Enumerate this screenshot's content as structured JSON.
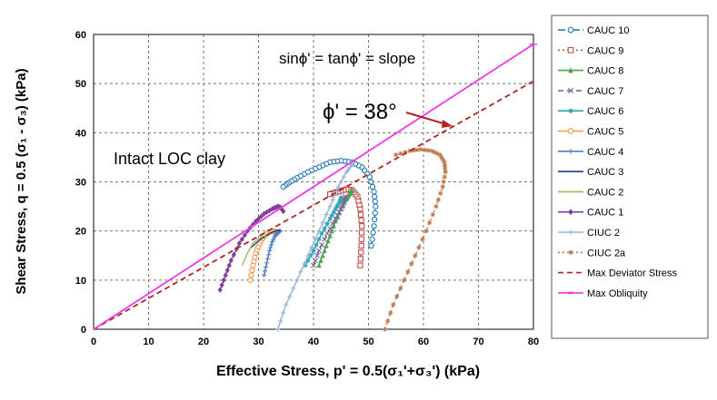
{
  "chart_data": {
    "type": "scatter",
    "title": "",
    "xlabel": "Effective Stress, p' = 0.5(σ₁'+σ₃')   (kPa)",
    "ylabel": "Shear Stress, q = 0.5 (σ₁ - σ₃)   (kPa)",
    "xlim": [
      0,
      80
    ],
    "ylim": [
      0,
      60
    ],
    "x_ticks": [
      "0",
      "10",
      "20",
      "30",
      "40",
      "50",
      "60",
      "70",
      "80"
    ],
    "y_ticks": [
      "0",
      "10",
      "20",
      "30",
      "40",
      "50",
      "60"
    ],
    "grid": true,
    "legend_position": "right",
    "annotations": {
      "friction_relation": "sinϕ' = tanϕ' = slope",
      "friction_angle": "ϕ' = 38°",
      "material": "Intact LOC clay"
    },
    "series": [
      {
        "name": "CAUC 10",
        "color": "#1f77b4",
        "marker": "circle",
        "dash": "dashdot",
        "x": [
          50.5,
          51.0,
          51.3,
          51.0,
          50.2,
          48.8,
          47.0,
          45.0,
          43.0,
          41.0,
          39.0,
          37.0,
          35.5,
          34.5
        ],
        "y": [
          17.0,
          21.0,
          25.0,
          28.0,
          31.0,
          33.0,
          34.0,
          34.3,
          34.0,
          33.0,
          32.0,
          30.8,
          29.8,
          29.0
        ]
      },
      {
        "name": "CAUC 9",
        "color": "#c0504d",
        "marker": "square",
        "dash": "dot",
        "x": [
          48.5,
          48.7,
          48.8,
          48.5,
          48.0,
          47.0,
          46.0,
          44.5,
          43.0
        ],
        "y": [
          13.0,
          17.0,
          21.0,
          24.5,
          27.0,
          28.3,
          28.5,
          28.0,
          27.5
        ]
      },
      {
        "name": "CAUC 8",
        "color": "#4ea24e",
        "marker": "triangle",
        "dash": "solid",
        "x": [
          41.0,
          42.0,
          43.0,
          44.0,
          45.0,
          46.0,
          46.5,
          46.8,
          47.0
        ],
        "y": [
          13.0,
          16.0,
          19.0,
          22.0,
          24.5,
          26.5,
          27.5,
          28.0,
          28.3
        ]
      },
      {
        "name": "CAUC 7",
        "color": "#8064a2",
        "marker": "x",
        "dash": "dash",
        "x": [
          40.0,
          41.0,
          42.5,
          44.0,
          45.0,
          45.5,
          45.8
        ],
        "y": [
          13.0,
          16.0,
          19.5,
          22.5,
          24.5,
          26.0,
          27.0
        ]
      },
      {
        "name": "CAUC 6",
        "color": "#2aa7b0",
        "marker": "asterisk",
        "dash": "solid",
        "x": [
          38.5,
          40.0,
          41.5,
          43.0,
          44.0,
          44.8,
          45.0
        ],
        "y": [
          13.0,
          16.0,
          19.5,
          22.5,
          24.5,
          26.0,
          26.8
        ]
      },
      {
        "name": "CAUC 5",
        "color": "#f79646",
        "marker": "circle",
        "dash": "solid",
        "x": [
          28.5,
          29.0,
          29.5,
          30.2,
          31.0,
          32.0,
          32.8,
          33.3
        ],
        "y": [
          10.0,
          13.0,
          15.5,
          17.5,
          19.0,
          19.8,
          20.0,
          19.5
        ]
      },
      {
        "name": "CAUC 4",
        "color": "#4f81bd",
        "marker": "plus",
        "dash": "solid",
        "x": [
          31.0,
          31.5,
          32.0,
          32.5,
          33.0,
          33.5,
          34.0
        ],
        "y": [
          11.0,
          13.5,
          16.0,
          17.8,
          19.0,
          19.8,
          20.0
        ]
      },
      {
        "name": "CAUC 3",
        "color": "#1f3c88",
        "marker": "none",
        "dash": "solid",
        "x": [
          28.5,
          30.0,
          32.0,
          33.5,
          34.0
        ],
        "y": [
          16.5,
          18.0,
          19.5,
          20.2,
          20.0
        ]
      },
      {
        "name": "CAUC 2",
        "color": "#9bbb59",
        "marker": "none",
        "dash": "solid",
        "x": [
          27.0,
          28.0,
          29.0,
          30.0,
          31.0,
          31.5
        ],
        "y": [
          13.0,
          15.5,
          17.5,
          18.5,
          19.0,
          18.8
        ]
      },
      {
        "name": "CAUC 1",
        "color": "#7e3f98",
        "marker": "diamond",
        "dash": "solid",
        "x": [
          23.0,
          24.0,
          25.0,
          26.5,
          28.0,
          29.5,
          31.0,
          32.5,
          33.5,
          34.0,
          34.5
        ],
        "y": [
          8.0,
          11.0,
          14.0,
          17.5,
          20.0,
          22.0,
          23.5,
          24.5,
          25.0,
          24.8,
          24.0
        ]
      },
      {
        "name": "CIUC 2",
        "color": "#95b3d7",
        "marker": "plus",
        "dash": "solid",
        "x": [
          33.5,
          35.0,
          37.0,
          39.0,
          41.0,
          43.0,
          44.5,
          46.0,
          47.0
        ],
        "y": [
          0.0,
          5.0,
          10.0,
          15.0,
          20.0,
          25.0,
          29.0,
          32.0,
          33.5
        ]
      },
      {
        "name": "CIUC 2a",
        "color": "#c07a4e",
        "marker": "asterisk",
        "dash": "dot",
        "x": [
          53.0,
          54.5,
          56.5,
          58.5,
          60.5,
          62.3,
          63.5,
          64.0,
          63.8,
          63.0,
          61.5,
          59.5,
          57.5,
          55.0
        ],
        "y": [
          0.0,
          5.0,
          10.0,
          15.0,
          20.0,
          25.0,
          29.0,
          32.0,
          34.0,
          35.5,
          36.3,
          36.6,
          36.3,
          35.5
        ]
      },
      {
        "name": "Max Deviator Stress",
        "color": "#b22222",
        "marker": "none",
        "dash": "dash",
        "x": [
          0,
          80
        ],
        "y": [
          0,
          50.5
        ]
      },
      {
        "name": "Max Obliquity",
        "color": "#ee3ae6",
        "marker": "line",
        "dash": "solid",
        "x": [
          0,
          80
        ],
        "y": [
          0,
          58
        ]
      }
    ]
  }
}
